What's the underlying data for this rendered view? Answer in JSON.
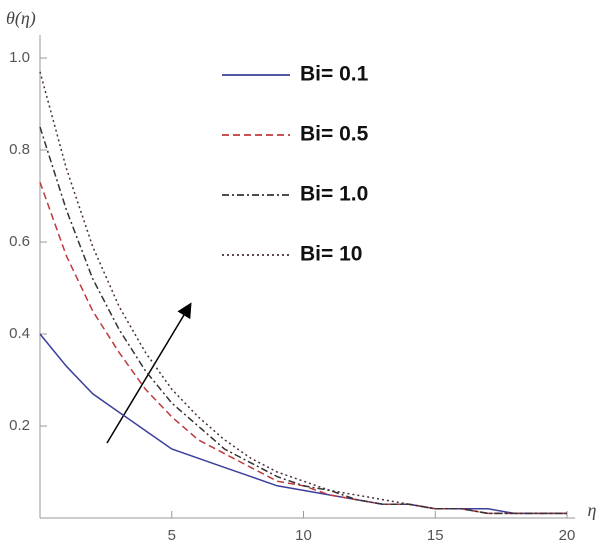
{
  "chart_data": {
    "type": "line",
    "x_label": "η",
    "y_label": "θ(η)",
    "x": [
      0,
      1,
      2,
      3,
      4,
      5,
      6,
      7,
      8,
      9,
      10,
      11,
      12,
      13,
      14,
      15,
      16,
      17,
      18,
      19,
      20
    ],
    "series": [
      {
        "name": "Bi= 0.1",
        "color": "#3c3f9c",
        "dash": "solid",
        "values": [
          0.4,
          0.33,
          0.27,
          0.23,
          0.19,
          0.15,
          0.13,
          0.11,
          0.09,
          0.07,
          0.06,
          0.05,
          0.04,
          0.03,
          0.03,
          0.02,
          0.02,
          0.02,
          0.01,
          0.01,
          0.01
        ]
      },
      {
        "name": "Bi= 0.5",
        "color": "#c0393b",
        "dash": "dashed",
        "values": [
          0.73,
          0.57,
          0.45,
          0.36,
          0.28,
          0.22,
          0.17,
          0.14,
          0.11,
          0.08,
          0.07,
          0.05,
          0.04,
          0.03,
          0.03,
          0.02,
          0.02,
          0.01,
          0.01,
          0.01,
          0.01
        ]
      },
      {
        "name": "Bi= 1.0",
        "color": "#333333",
        "dash": "dashdot",
        "values": [
          0.85,
          0.67,
          0.52,
          0.41,
          0.32,
          0.25,
          0.2,
          0.15,
          0.12,
          0.09,
          0.07,
          0.06,
          0.04,
          0.03,
          0.03,
          0.02,
          0.02,
          0.01,
          0.01,
          0.01,
          0.01
        ]
      },
      {
        "name": "Bi= 10",
        "color": "#4a2f3a",
        "dash": "dotted",
        "values": [
          0.97,
          0.76,
          0.59,
          0.46,
          0.36,
          0.28,
          0.22,
          0.17,
          0.13,
          0.1,
          0.08,
          0.06,
          0.05,
          0.04,
          0.03,
          0.02,
          0.02,
          0.01,
          0.01,
          0.01,
          0.01
        ]
      }
    ],
    "xlim": [
      0,
      20
    ],
    "ylim": [
      0,
      1.05
    ],
    "xticks": [
      5,
      10,
      15,
      20
    ],
    "yticks": [
      0.2,
      0.4,
      0.6,
      0.8,
      {
        "value": 1,
        "label": "1.0"
      }
    ],
    "grid": false
  }
}
